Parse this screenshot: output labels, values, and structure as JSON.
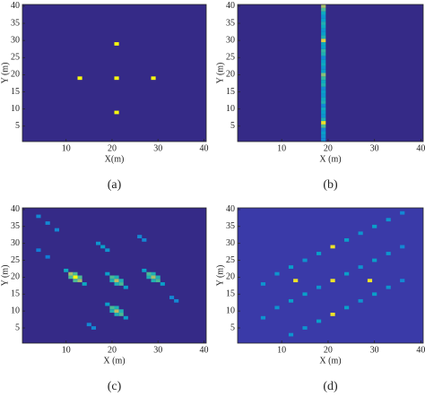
{
  "chart_data": [
    {
      "type": "heatmap",
      "caption": "(a)",
      "xlabel": "X(m)",
      "ylabel": "Y (m)",
      "xlim": [
        0.5,
        40.5
      ],
      "ylim": [
        0.5,
        40.5
      ],
      "xticks": [
        10,
        20,
        30,
        40
      ],
      "yticks": [
        5,
        10,
        15,
        20,
        25,
        30,
        35,
        40
      ],
      "background": "#352a87",
      "colormap": [
        "#352a87",
        "#0363e1",
        "#1485d4",
        "#06a7c6",
        "#38b99e",
        "#92bf73",
        "#d9ba56",
        "#f9fb0e"
      ],
      "cells": {
        "x": [
          21,
          13,
          21,
          29,
          21
        ],
        "y": [
          29,
          19,
          19,
          19,
          9
        ],
        "values": [
          1,
          1,
          1,
          1,
          1
        ]
      }
    },
    {
      "type": "heatmap",
      "caption": "(b)",
      "xlabel": "X (m)",
      "ylabel": "Y (m)",
      "xlim": [
        0.5,
        40.5
      ],
      "ylim": [
        0.5,
        40.5
      ],
      "xticks": [
        10,
        20,
        30,
        40
      ],
      "yticks": [
        5,
        10,
        15,
        20,
        25,
        30,
        35,
        40
      ],
      "background": "#352a87",
      "colormap": [
        "#352a87",
        "#0363e1",
        "#1485d4",
        "#06a7c6",
        "#38b99e",
        "#92bf73",
        "#d9ba56",
        "#f9fb0e"
      ],
      "cells": {
        "x": [
          19,
          19,
          19,
          19,
          19,
          19,
          19,
          19,
          19,
          19,
          19,
          19,
          19,
          19,
          19,
          19,
          19,
          19,
          19,
          19,
          19,
          19,
          19,
          19,
          19,
          19,
          19,
          19,
          19,
          19,
          19,
          19,
          19,
          19,
          19,
          19,
          19,
          19,
          19,
          19
        ],
        "y": [
          1,
          2,
          3,
          4,
          5,
          6,
          7,
          8,
          9,
          10,
          11,
          12,
          13,
          14,
          15,
          16,
          17,
          18,
          19,
          20,
          21,
          22,
          23,
          24,
          25,
          26,
          27,
          28,
          29,
          30,
          31,
          32,
          33,
          34,
          35,
          36,
          37,
          38,
          39,
          40
        ],
        "values": [
          0.3,
          0.35,
          0.4,
          0.3,
          0.6,
          0.95,
          0.5,
          0.35,
          0.4,
          0.45,
          0.3,
          0.5,
          0.45,
          0.35,
          0.4,
          0.3,
          0.5,
          0.45,
          0.55,
          0.7,
          0.4,
          0.35,
          0.45,
          0.4,
          0.3,
          0.5,
          0.55,
          0.4,
          0.45,
          0.9,
          0.5,
          0.4,
          0.35,
          0.45,
          0.5,
          0.4,
          0.35,
          0.45,
          0.6,
          0.75
        ]
      }
    },
    {
      "type": "heatmap",
      "caption": "(c)",
      "xlabel": "X (m)",
      "ylabel": "Y (m)",
      "xlim": [
        0.5,
        40.5
      ],
      "ylim": [
        0.5,
        40.5
      ],
      "xticks": [
        10,
        20,
        30,
        40
      ],
      "yticks": [
        5,
        10,
        15,
        20,
        25,
        30,
        35,
        40
      ],
      "background": "#352a87",
      "colormap": [
        "#352a87",
        "#0363e1",
        "#1485d4",
        "#06a7c6",
        "#38b99e",
        "#92bf73",
        "#d9ba56",
        "#f9fb0e"
      ],
      "cells": {
        "x": [
          10,
          11,
          12,
          13,
          14,
          11,
          13,
          12,
          12,
          19,
          20,
          21,
          22,
          23,
          20,
          22,
          21,
          21,
          27,
          28,
          29,
          30,
          31,
          28,
          30,
          29,
          29,
          19,
          20,
          21,
          22,
          23,
          20,
          22,
          21,
          21,
          4,
          6,
          8,
          17,
          18,
          19,
          26,
          27,
          4,
          6,
          15,
          16,
          33,
          34
        ],
        "y": [
          22,
          21,
          20,
          19,
          18,
          20,
          20,
          21,
          19,
          21,
          20,
          19,
          18,
          17,
          19,
          19,
          20,
          18,
          22,
          21,
          20,
          19,
          18,
          20,
          20,
          21,
          19,
          12,
          11,
          10,
          9,
          8,
          10,
          10,
          11,
          9,
          38,
          36,
          34,
          30,
          29,
          28,
          32,
          31,
          28,
          26,
          6,
          5,
          14,
          13
        ],
        "values": [
          0.45,
          0.75,
          1,
          0.75,
          0.45,
          0.6,
          0.6,
          0.6,
          0.6,
          0.4,
          0.6,
          0.8,
          0.6,
          0.4,
          0.5,
          0.5,
          0.5,
          0.5,
          0.4,
          0.6,
          0.75,
          0.6,
          0.4,
          0.5,
          0.5,
          0.5,
          0.5,
          0.4,
          0.6,
          0.8,
          0.6,
          0.4,
          0.5,
          0.5,
          0.5,
          0.5,
          0.3,
          0.3,
          0.3,
          0.35,
          0.4,
          0.35,
          0.3,
          0.3,
          0.25,
          0.25,
          0.3,
          0.3,
          0.3,
          0.3
        ]
      }
    },
    {
      "type": "heatmap",
      "caption": "(d)",
      "xlabel": "X (m)",
      "ylabel": "Y (m)",
      "xlim": [
        0.5,
        40.5
      ],
      "ylim": [
        0.5,
        40.5
      ],
      "xticks": [
        10,
        20,
        30,
        40
      ],
      "yticks": [
        5,
        10,
        15,
        20,
        25,
        30,
        35,
        40
      ],
      "background": "#3a3aa8",
      "colormap": [
        "#352a87",
        "#0363e1",
        "#1485d4",
        "#06a7c6",
        "#38b99e",
        "#92bf73",
        "#d9ba56",
        "#f9fb0e"
      ],
      "cells": {
        "x": [
          21,
          13,
          21,
          29,
          21,
          6,
          9,
          12,
          15,
          18,
          24,
          27,
          30,
          33,
          36,
          6,
          9,
          12,
          15,
          18,
          24,
          27,
          30,
          33,
          36,
          12,
          15,
          18,
          24,
          27,
          30,
          33,
          36
        ],
        "y": [
          29,
          19,
          19,
          19,
          9,
          18,
          21,
          23,
          25,
          27,
          31,
          33,
          35,
          37,
          39,
          8,
          11,
          13,
          15,
          17,
          21,
          23,
          25,
          27,
          29,
          3,
          5,
          7,
          11,
          13,
          15,
          17,
          19
        ],
        "values": [
          0.95,
          0.95,
          0.95,
          0.95,
          0.95,
          0.35,
          0.35,
          0.4,
          0.35,
          0.4,
          0.4,
          0.35,
          0.4,
          0.35,
          0.3,
          0.35,
          0.35,
          0.4,
          0.4,
          0.35,
          0.4,
          0.35,
          0.4,
          0.35,
          0.3,
          0.35,
          0.35,
          0.4,
          0.4,
          0.35,
          0.4,
          0.35,
          0.3
        ]
      }
    }
  ]
}
